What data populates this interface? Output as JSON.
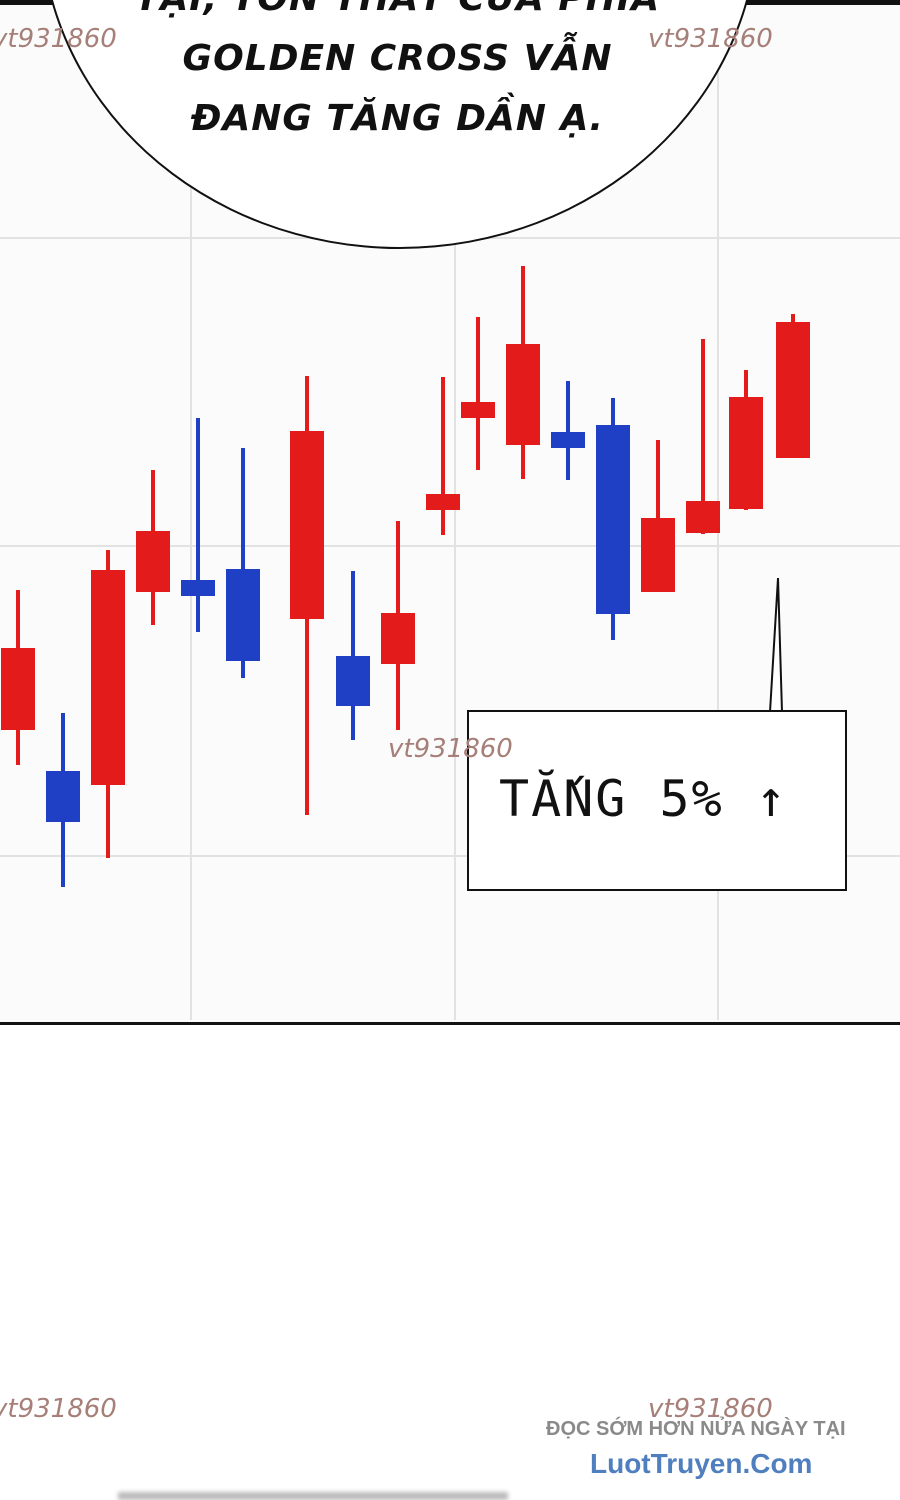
{
  "speech_bubble": {
    "lines": [
      "TẠI, TỔN THẤT CỦA PHÍA",
      "GOLDEN CROSS VẪN",
      "ĐANG TĂNG DẦN Ạ."
    ]
  },
  "callout": {
    "text": "TẮNG 5% ↑"
  },
  "watermarks": [
    "vt931860",
    "vt931860",
    "vt931860",
    "vt931860",
    "vt931860"
  ],
  "promo": {
    "line1": "ĐỌC SỚM HƠN NỬA NGÀY TẠI",
    "line2": "LuotTruyen.Com"
  },
  "colors": {
    "up": "#e31b1b",
    "down": "#1f3fc4",
    "grid": "#e2e2e2"
  }
}
